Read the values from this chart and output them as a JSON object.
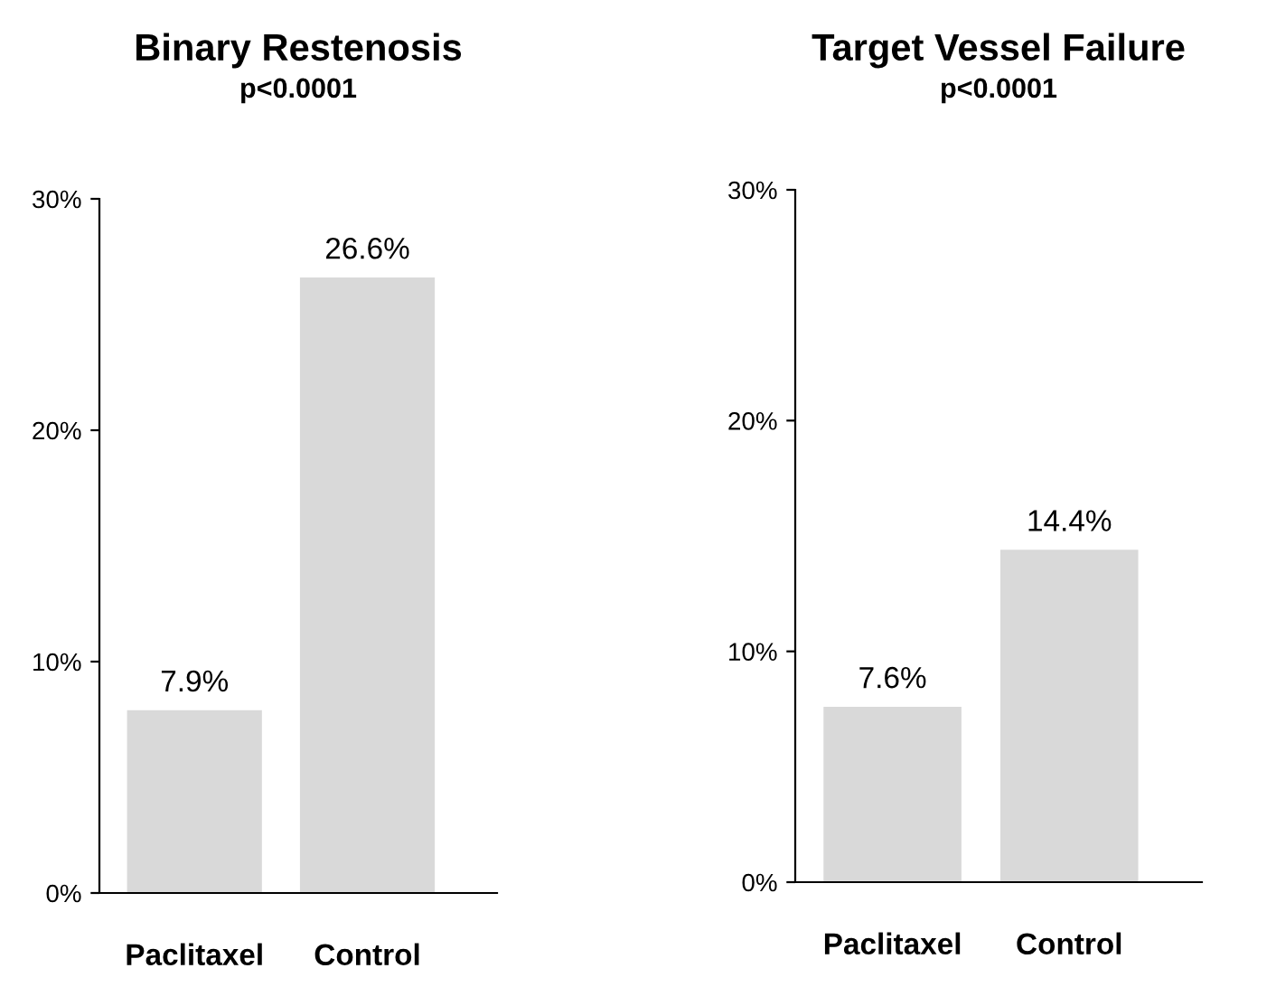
{
  "chart_data": [
    {
      "type": "bar",
      "title": "Binary Restenosis",
      "subtitle": "p<0.0001",
      "categories": [
        "Paclitaxel",
        "Control"
      ],
      "values": [
        7.9,
        26.6
      ],
      "value_labels": [
        "7.9%",
        "26.6%"
      ],
      "color": "#d9d9d9",
      "ylim": [
        0,
        30
      ],
      "yticks": [
        {
          "value": 0,
          "label": "0%"
        },
        {
          "value": 10,
          "label": "10%"
        },
        {
          "value": 20,
          "label": "20%"
        },
        {
          "value": 30,
          "label": "30%"
        }
      ],
      "grid": false,
      "legend": false
    },
    {
      "type": "bar",
      "title": "Target Vessel Failure",
      "subtitle": "p<0.0001",
      "categories": [
        "Paclitaxel",
        "Control"
      ],
      "values": [
        7.6,
        14.4
      ],
      "value_labels": [
        "7.6%",
        "14.4%"
      ],
      "color": "#d9d9d9",
      "ylim": [
        0,
        30
      ],
      "yticks": [
        {
          "value": 0,
          "label": "0%"
        },
        {
          "value": 10,
          "label": "10%"
        },
        {
          "value": 20,
          "label": "20%"
        },
        {
          "value": 30,
          "label": "30%"
        }
      ],
      "grid": false,
      "legend": false
    }
  ]
}
